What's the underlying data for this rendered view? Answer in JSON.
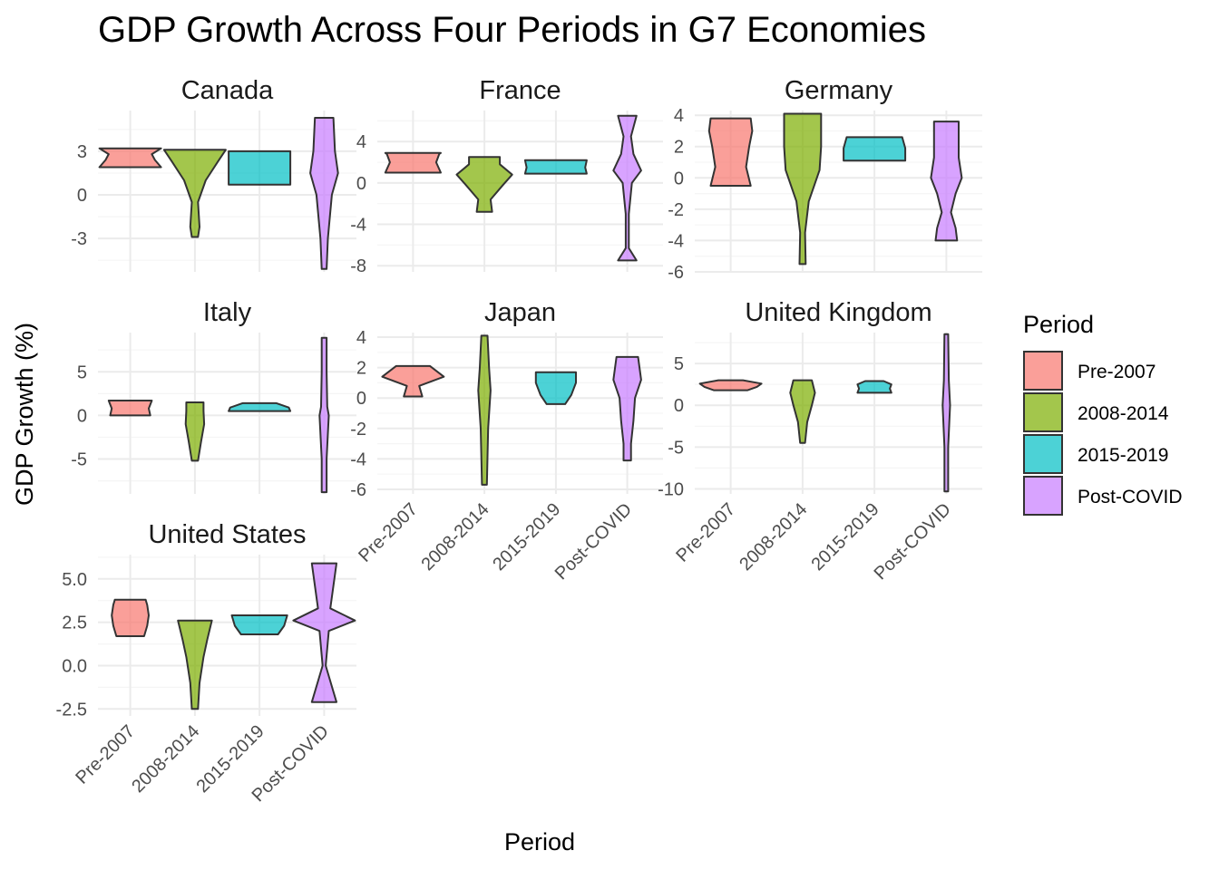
{
  "chart_data": {
    "type": "violin",
    "title": "GDP Growth Across Four Periods in G7 Economies",
    "xlabel": "Period",
    "ylabel": "GDP Growth (%)",
    "categories": [
      "Pre-2007",
      "2008-2014",
      "2015-2019",
      "Post-COVID"
    ],
    "legend": {
      "title": "Period",
      "placement": "right",
      "entries": [
        {
          "label": "Pre-2007",
          "color": "#F8766D"
        },
        {
          "label": "2008-2014",
          "color": "#7CAE00"
        },
        {
          "label": "2015-2019",
          "color": "#00BFC4"
        },
        {
          "label": "Post-COVID",
          "color": "#C77CFF"
        }
      ]
    },
    "grid": true,
    "facets": [
      {
        "name": "Canada",
        "ylim": [
          -5.3,
          5.8
        ],
        "yticks": [
          -3,
          0,
          3
        ],
        "ytick_labels": [
          "-3",
          "0",
          "3"
        ],
        "series": [
          {
            "period": "Pre-2007",
            "profile": [
              [
                1.9,
                1.0
              ],
              [
                2.4,
                0.8
              ],
              [
                2.8,
                0.7
              ],
              [
                3.2,
                1.0
              ]
            ]
          },
          {
            "period": "2008-2014",
            "profile": [
              [
                -2.9,
                0.1
              ],
              [
                -2.2,
                0.15
              ],
              [
                -0.5,
                0.1
              ],
              [
                1.0,
                0.35
              ],
              [
                2.3,
                0.75
              ],
              [
                3.1,
                1.0
              ]
            ]
          },
          {
            "period": "2015-2019",
            "profile": [
              [
                0.7,
                1.0
              ],
              [
                1.5,
                1.0
              ],
              [
                2.3,
                1.0
              ],
              [
                3.0,
                1.0
              ]
            ]
          },
          {
            "period": "Post-COVID",
            "profile": [
              [
                -5.1,
                0.08
              ],
              [
                -3.0,
                0.12
              ],
              [
                0.0,
                0.25
              ],
              [
                1.5,
                0.45
              ],
              [
                3.0,
                0.35
              ],
              [
                5.3,
                0.3
              ]
            ]
          }
        ]
      },
      {
        "name": "France",
        "ylim": [
          -8.6,
          7.0
        ],
        "yticks": [
          -8,
          -4,
          0,
          4
        ],
        "ytick_labels": [
          "-8",
          "-4",
          "0",
          "4"
        ],
        "series": [
          {
            "period": "Pre-2007",
            "profile": [
              [
                1.0,
                0.9
              ],
              [
                2.0,
                0.75
              ],
              [
                2.8,
                0.85
              ],
              [
                2.9,
                0.9
              ]
            ]
          },
          {
            "period": "2008-2014",
            "profile": [
              [
                -2.8,
                0.25
              ],
              [
                -1.6,
                0.2
              ],
              [
                -0.2,
                0.6
              ],
              [
                0.8,
                0.9
              ],
              [
                1.8,
                0.5
              ],
              [
                2.5,
                0.5
              ]
            ]
          },
          {
            "period": "2015-2019",
            "profile": [
              [
                0.9,
                1.0
              ],
              [
                1.5,
                0.95
              ],
              [
                2.2,
                1.0
              ]
            ]
          },
          {
            "period": "Post-COVID",
            "profile": [
              [
                -7.5,
                0.3
              ],
              [
                -6.3,
                0.05
              ],
              [
                -3.0,
                0.05
              ],
              [
                0.0,
                0.15
              ],
              [
                1.2,
                0.45
              ],
              [
                2.8,
                0.2
              ],
              [
                4.5,
                0.12
              ],
              [
                6.5,
                0.3
              ]
            ]
          }
        ]
      },
      {
        "name": "Germany",
        "ylim": [
          -6.0,
          4.3
        ],
        "yticks": [
          -6,
          -4,
          -2,
          0,
          2,
          4
        ],
        "ytick_labels": [
          "-6",
          "-4",
          "-2",
          "0",
          "2",
          "4"
        ],
        "series": [
          {
            "period": "Pre-2007",
            "profile": [
              [
                -0.5,
                0.65
              ],
              [
                0.7,
                0.5
              ],
              [
                2.0,
                0.6
              ],
              [
                3.0,
                0.7
              ],
              [
                3.8,
                0.65
              ]
            ]
          },
          {
            "period": "2008-2014",
            "profile": [
              [
                -5.5,
                0.1
              ],
              [
                -3.5,
                0.08
              ],
              [
                -1.5,
                0.2
              ],
              [
                0.5,
                0.55
              ],
              [
                2.0,
                0.6
              ],
              [
                3.2,
                0.6
              ],
              [
                4.1,
                0.6
              ]
            ]
          },
          {
            "period": "2015-2019",
            "profile": [
              [
                1.1,
                1.0
              ],
              [
                1.9,
                1.0
              ],
              [
                2.6,
                0.9
              ]
            ]
          },
          {
            "period": "Post-COVID",
            "profile": [
              [
                -4.0,
                0.35
              ],
              [
                -3.2,
                0.3
              ],
              [
                -2.2,
                0.15
              ],
              [
                -1.0,
                0.3
              ],
              [
                0.0,
                0.5
              ],
              [
                1.3,
                0.4
              ],
              [
                3.6,
                0.4
              ]
            ]
          }
        ]
      },
      {
        "name": "Italy",
        "ylim": [
          -9.0,
          9.5
        ],
        "yticks": [
          -5,
          0,
          5
        ],
        "ytick_labels": [
          "-5",
          "0",
          "5"
        ],
        "series": [
          {
            "period": "Pre-2007",
            "profile": [
              [
                0.0,
                0.65
              ],
              [
                0.8,
                0.6
              ],
              [
                1.7,
                0.7
              ]
            ]
          },
          {
            "period": "2008-2014",
            "profile": [
              [
                -5.2,
                0.1
              ],
              [
                -3.0,
                0.2
              ],
              [
                -1.0,
                0.3
              ],
              [
                0.5,
                0.28
              ],
              [
                1.5,
                0.28
              ]
            ]
          },
          {
            "period": "2015-2019",
            "profile": [
              [
                0.5,
                1.0
              ],
              [
                0.9,
                0.95
              ],
              [
                1.4,
                0.55
              ]
            ]
          },
          {
            "period": "Post-COVID",
            "profile": [
              [
                -8.8,
                0.08
              ],
              [
                -5.0,
                0.08
              ],
              [
                0.0,
                0.15
              ],
              [
                1.0,
                0.1
              ],
              [
                5.0,
                0.08
              ],
              [
                8.9,
                0.08
              ]
            ]
          }
        ]
      },
      {
        "name": "Japan",
        "ylim": [
          -6.3,
          4.3
        ],
        "yticks": [
          -6,
          -4,
          -2,
          0,
          2,
          4
        ],
        "ytick_labels": [
          "-6",
          "-4",
          "-2",
          "0",
          "2",
          "4"
        ],
        "series": [
          {
            "period": "Pre-2007",
            "profile": [
              [
                0.1,
                0.3
              ],
              [
                0.8,
                0.2
              ],
              [
                1.4,
                1.0
              ],
              [
                2.1,
                0.55
              ]
            ]
          },
          {
            "period": "2008-2014",
            "profile": [
              [
                -5.7,
                0.08
              ],
              [
                -2.0,
                0.12
              ],
              [
                0.5,
                0.2
              ],
              [
                2.0,
                0.15
              ],
              [
                4.1,
                0.1
              ]
            ]
          },
          {
            "period": "2015-2019",
            "profile": [
              [
                -0.4,
                0.3
              ],
              [
                0.2,
                0.5
              ],
              [
                1.0,
                0.65
              ],
              [
                1.7,
                0.65
              ]
            ]
          },
          {
            "period": "Post-COVID",
            "profile": [
              [
                -4.1,
                0.12
              ],
              [
                -3.0,
                0.12
              ],
              [
                -1.5,
                0.2
              ],
              [
                0.0,
                0.25
              ],
              [
                1.2,
                0.45
              ],
              [
                2.7,
                0.35
              ]
            ]
          }
        ]
      },
      {
        "name": "United Kingdom",
        "ylim": [
          -10.6,
          8.7
        ],
        "yticks": [
          -10,
          -5,
          0,
          5
        ],
        "ytick_labels": [
          "-10",
          "-5",
          "0",
          "5"
        ],
        "series": [
          {
            "period": "Pre-2007",
            "profile": [
              [
                1.8,
                0.55
              ],
              [
                2.2,
                0.85
              ],
              [
                2.6,
                1.0
              ],
              [
                3.0,
                0.4
              ]
            ]
          },
          {
            "period": "2008-2014",
            "profile": [
              [
                -4.5,
                0.08
              ],
              [
                -2.0,
                0.15
              ],
              [
                0.0,
                0.3
              ],
              [
                1.5,
                0.4
              ],
              [
                3.0,
                0.3
              ]
            ]
          },
          {
            "period": "2015-2019",
            "profile": [
              [
                1.5,
                0.55
              ],
              [
                2.0,
                0.5
              ],
              [
                2.5,
                0.55
              ],
              [
                2.9,
                0.3
              ]
            ]
          },
          {
            "period": "Post-COVID",
            "profile": [
              [
                -10.3,
                0.06
              ],
              [
                -5.0,
                0.06
              ],
              [
                0.0,
                0.12
              ],
              [
                3.0,
                0.08
              ],
              [
                8.5,
                0.06
              ]
            ]
          }
        ]
      },
      {
        "name": "United States",
        "ylim": [
          -2.9,
          6.4
        ],
        "yticks": [
          -2.5,
          0.0,
          2.5,
          5.0
        ],
        "ytick_labels": [
          "-2.5",
          "0.0",
          "2.5",
          "5.0"
        ],
        "series": [
          {
            "period": "Pre-2007",
            "profile": [
              [
                1.7,
                0.45
              ],
              [
                2.3,
                0.55
              ],
              [
                2.9,
                0.6
              ],
              [
                3.5,
                0.55
              ],
              [
                3.8,
                0.5
              ]
            ]
          },
          {
            "period": "2008-2014",
            "profile": [
              [
                -2.5,
                0.1
              ],
              [
                -1.0,
                0.15
              ],
              [
                0.5,
                0.28
              ],
              [
                1.5,
                0.4
              ],
              [
                2.6,
                0.55
              ]
            ]
          },
          {
            "period": "2015-2019",
            "profile": [
              [
                1.8,
                0.6
              ],
              [
                2.3,
                0.8
              ],
              [
                2.9,
                0.9
              ]
            ]
          },
          {
            "period": "Post-COVID",
            "profile": [
              [
                -2.1,
                0.4
              ],
              [
                0.0,
                0.05
              ],
              [
                2.0,
                0.15
              ],
              [
                2.6,
                1.0
              ],
              [
                3.3,
                0.2
              ],
              [
                5.9,
                0.4
              ]
            ]
          }
        ]
      }
    ]
  }
}
